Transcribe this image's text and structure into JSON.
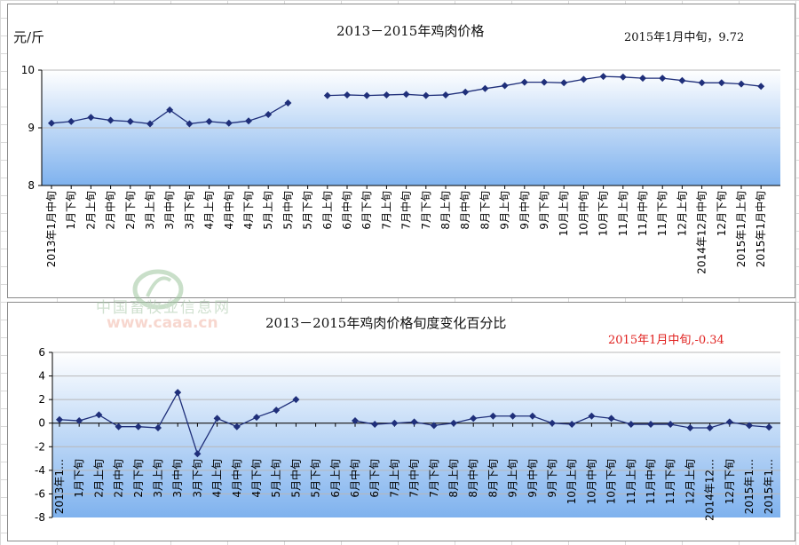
{
  "chart_data": [
    {
      "type": "line",
      "title": "2013－2015年鸡肉价格",
      "ylabel": "元/斤",
      "annotation": "2015年1月中旬，9.72",
      "ylim": [
        8,
        10
      ],
      "yticks": [
        "8",
        "9",
        "10"
      ],
      "grid": true,
      "categories": [
        "2013年1月中旬",
        "1月下旬",
        "2月上旬",
        "2月中旬",
        "2月下旬",
        "3月上旬",
        "3月中旬",
        "3月下旬",
        "4月上旬",
        "4月中旬",
        "4月下旬",
        "5月上旬",
        "5月中旬",
        "5月下旬",
        "6月上旬",
        "6月中旬",
        "6月下旬",
        "7月上旬",
        "7月中旬",
        "7月下旬",
        "8月上旬",
        "8月中旬",
        "8月下旬",
        "9月上旬",
        "9月中旬",
        "9月下旬",
        "10月上旬",
        "10月中旬",
        "10月下旬",
        "11月上旬",
        "11月中旬",
        "11月下旬",
        "12月上旬",
        "2014年12月中旬",
        "12月下旬",
        "2015年1月上旬",
        "2015年1月中旬"
      ],
      "values": [
        9.08,
        9.11,
        9.18,
        9.13,
        9.11,
        9.07,
        9.31,
        9.07,
        9.11,
        9.08,
        9.12,
        9.23,
        9.43,
        null,
        9.56,
        9.57,
        9.56,
        9.57,
        9.58,
        9.56,
        9.57,
        9.62,
        9.68,
        9.73,
        9.79,
        9.79,
        9.78,
        9.84,
        9.89,
        9.88,
        9.86,
        9.86,
        9.82,
        9.78,
        9.78,
        9.76,
        9.72
      ],
      "color": "#1f2f7a"
    },
    {
      "type": "line",
      "title": "2013－2015年鸡肉价格旬度变化百分比",
      "annotation": "2015年1月中旬,-0.34",
      "ylim": [
        -8,
        6
      ],
      "yticks": [
        "-8",
        "-6",
        "-4",
        "-2",
        "0",
        "2",
        "4",
        "6"
      ],
      "grid": true,
      "categories": [
        "2013年1…",
        "1月下旬",
        "2月上旬",
        "2月中旬",
        "2月下旬",
        "3月上旬",
        "3月中旬",
        "3月下旬",
        "4月上旬",
        "4月中旬",
        "4月下旬",
        "5月上旬",
        "5月中旬",
        "5月下旬",
        "6月上旬",
        "6月中旬",
        "6月下旬",
        "7月上旬",
        "7月中旬",
        "7月下旬",
        "8月上旬",
        "8月中旬",
        "8月下旬",
        "9月上旬",
        "9月中旬",
        "9月下旬",
        "10月上旬",
        "10月中旬",
        "10月下旬",
        "11月上旬",
        "11月中旬",
        "11月下旬",
        "12月上旬",
        "2014年12…",
        "12月下旬",
        "2015年1…",
        "2015年1…"
      ],
      "values": [
        0.3,
        0.2,
        0.7,
        -0.3,
        -0.3,
        -0.4,
        2.6,
        -2.6,
        0.4,
        -0.3,
        0.5,
        1.1,
        2.0,
        null,
        null,
        0.2,
        -0.1,
        0.0,
        0.1,
        -0.2,
        0.0,
        0.4,
        0.6,
        0.6,
        0.6,
        0.0,
        -0.1,
        0.6,
        0.4,
        -0.1,
        -0.1,
        -0.1,
        -0.4,
        -0.4,
        0.1,
        -0.2,
        -0.34
      ],
      "color": "#1f2f7a"
    }
  ],
  "watermark": {
    "cn": "中国畜牧业信息网",
    "en": "www.caaa.cn"
  }
}
